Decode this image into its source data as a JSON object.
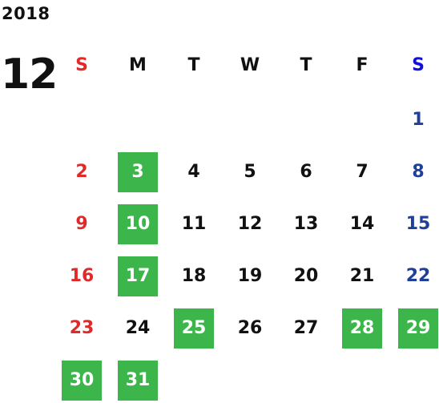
{
  "calendar": {
    "year": "2018",
    "month": "12",
    "weekdays": [
      "S",
      "M",
      "T",
      "W",
      "T",
      "F",
      "S"
    ],
    "days": [
      {
        "label": "1",
        "kind": "saturday",
        "highlighted": false
      },
      {
        "label": "2",
        "kind": "sunday",
        "highlighted": false
      },
      {
        "label": "3",
        "kind": "weekday",
        "highlighted": true
      },
      {
        "label": "4",
        "kind": "weekday",
        "highlighted": false
      },
      {
        "label": "5",
        "kind": "weekday",
        "highlighted": false
      },
      {
        "label": "6",
        "kind": "weekday",
        "highlighted": false
      },
      {
        "label": "7",
        "kind": "weekday",
        "highlighted": false
      },
      {
        "label": "8",
        "kind": "saturday",
        "highlighted": false
      },
      {
        "label": "9",
        "kind": "sunday",
        "highlighted": false
      },
      {
        "label": "10",
        "kind": "weekday",
        "highlighted": true
      },
      {
        "label": "11",
        "kind": "weekday",
        "highlighted": false
      },
      {
        "label": "12",
        "kind": "weekday",
        "highlighted": false
      },
      {
        "label": "13",
        "kind": "weekday",
        "highlighted": false
      },
      {
        "label": "14",
        "kind": "weekday",
        "highlighted": false
      },
      {
        "label": "15",
        "kind": "saturday",
        "highlighted": false
      },
      {
        "label": "16",
        "kind": "sunday",
        "highlighted": false
      },
      {
        "label": "17",
        "kind": "weekday",
        "highlighted": true
      },
      {
        "label": "18",
        "kind": "weekday",
        "highlighted": false
      },
      {
        "label": "19",
        "kind": "weekday",
        "highlighted": false
      },
      {
        "label": "20",
        "kind": "weekday",
        "highlighted": false
      },
      {
        "label": "21",
        "kind": "weekday",
        "highlighted": false
      },
      {
        "label": "22",
        "kind": "saturday",
        "highlighted": false
      },
      {
        "label": "23",
        "kind": "sunday",
        "highlighted": false
      },
      {
        "label": "24",
        "kind": "weekday",
        "highlighted": false
      },
      {
        "label": "25",
        "kind": "weekday",
        "highlighted": true
      },
      {
        "label": "26",
        "kind": "weekday",
        "highlighted": false
      },
      {
        "label": "27",
        "kind": "weekday",
        "highlighted": false
      },
      {
        "label": "28",
        "kind": "weekday",
        "highlighted": true
      },
      {
        "label": "29",
        "kind": "saturday",
        "highlighted": true
      },
      {
        "label": "30",
        "kind": "sunday",
        "highlighted": true
      },
      {
        "label": "31",
        "kind": "weekday",
        "highlighted": true
      }
    ]
  },
  "colors": {
    "sunday": "#e02a2a",
    "saturday_header": "#1010d8",
    "saturday_date": "#1f3f9a",
    "weekday": "#111111",
    "highlight_bg": "#3cb54a",
    "highlight_text": "#ffffff"
  }
}
